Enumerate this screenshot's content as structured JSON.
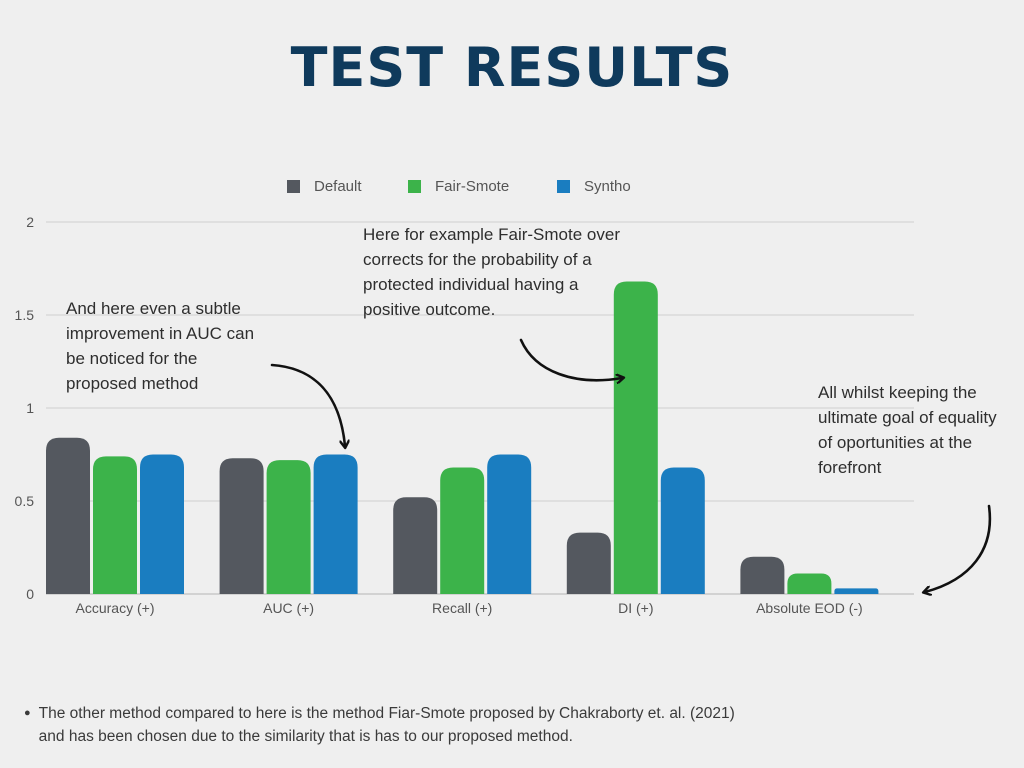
{
  "title": "TEST RESULTS",
  "chart_data": {
    "type": "bar",
    "categories": [
      "Accuracy (+)",
      "AUC (+)",
      "Recall (+)",
      "DI (+)",
      "Absolute EOD (-)"
    ],
    "series": [
      {
        "name": "Default",
        "color": "#54585f",
        "values": [
          0.84,
          0.73,
          0.52,
          0.33,
          0.2
        ]
      },
      {
        "name": "Fair-Smote",
        "color": "#3cb34a",
        "values": [
          0.74,
          0.72,
          0.68,
          1.68,
          0.11
        ]
      },
      {
        "name": "Syntho",
        "color": "#1a7dc0",
        "values": [
          0.75,
          0.75,
          0.75,
          0.68,
          0.03
        ]
      }
    ],
    "yticks": [
      "0",
      "0.5",
      "1",
      "1.5",
      "2"
    ],
    "ylim": [
      0,
      2
    ],
    "grid": true,
    "legend_position": "top-center"
  },
  "annotations": {
    "auc": "And here even a subtle improvement in AUC can be noticed for the proposed method",
    "di": "Here for example Fair-Smote over corrects for the probability of a protected individual having a positive outcome.",
    "eod": "All whilst keeping the ultimate goal of equality of oportunities at the forefront"
  },
  "footnote": "The other method compared to here is the method Fiar-Smote proposed by Chakraborty et. al. (2021)\nand has been chosen due to the similarity that is has to our proposed method."
}
